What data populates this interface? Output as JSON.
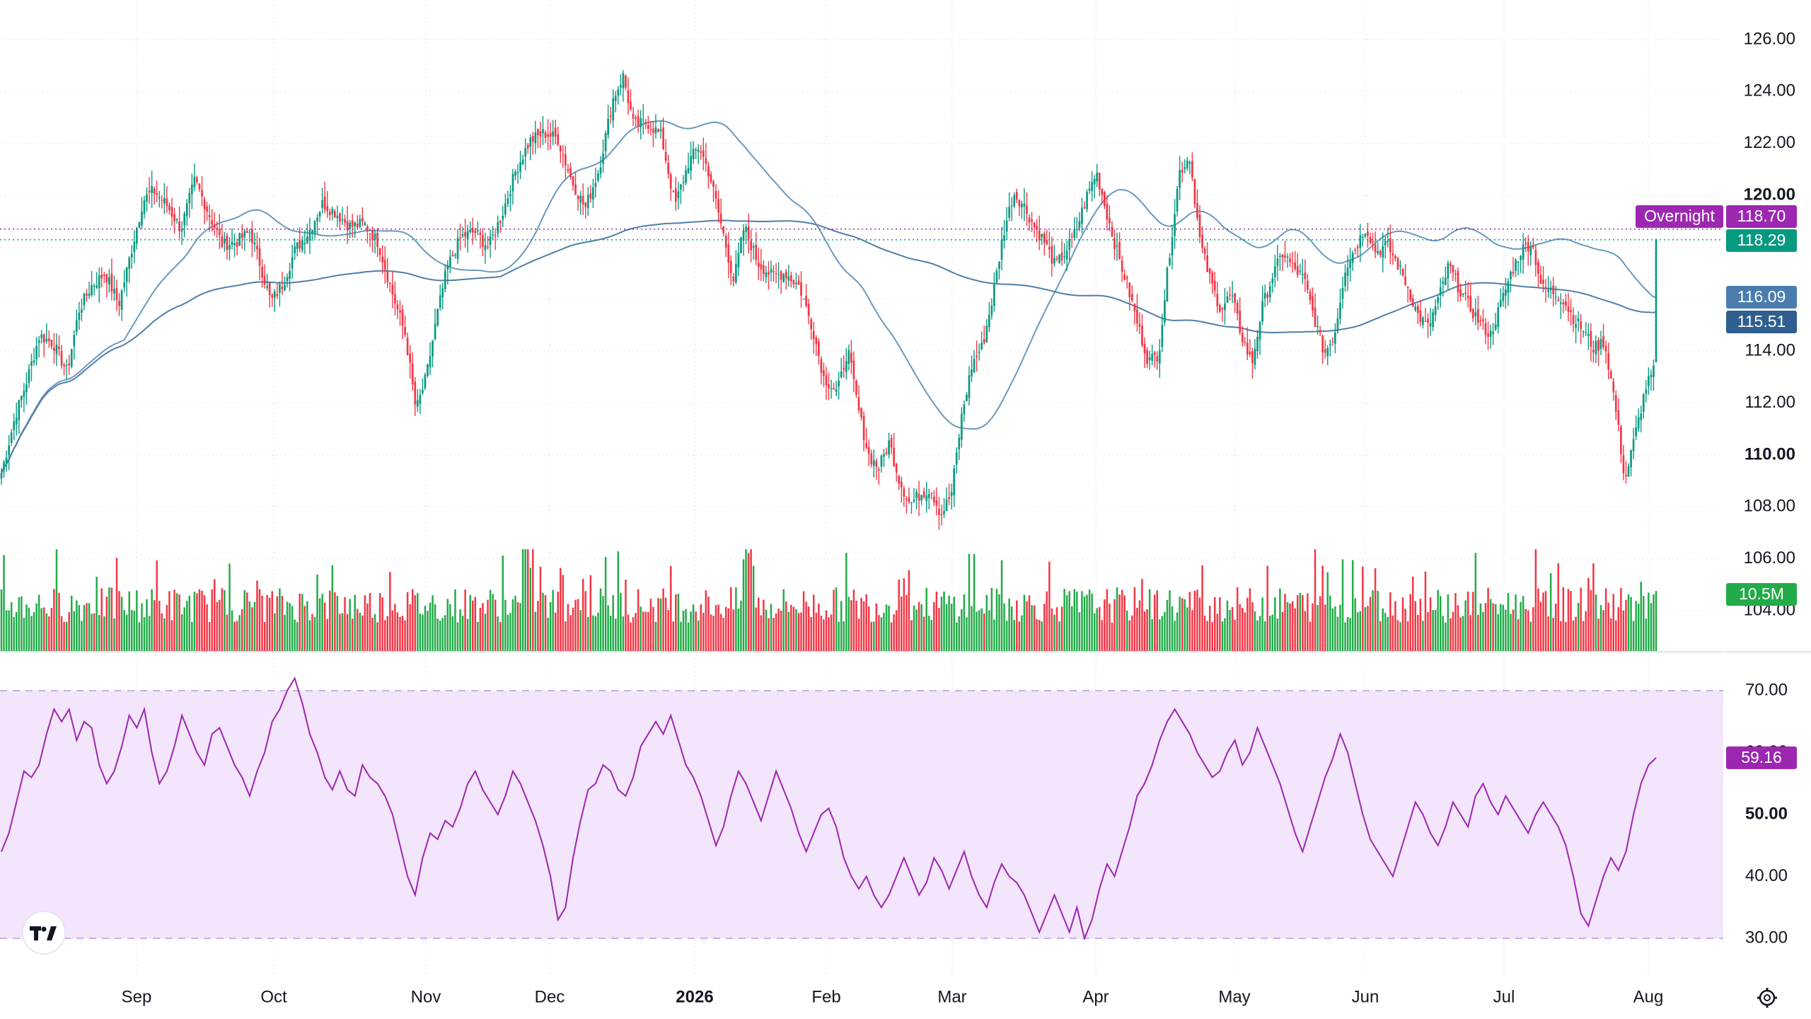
{
  "chart_data": [
    {
      "type": "candlestick",
      "x_axis": {
        "tick_labels": [
          "Sep",
          "Oct",
          "Nov",
          "Dec",
          "2026",
          "Feb",
          "Mar",
          "Apr",
          "May",
          "Jun",
          "Jul",
          "Aug"
        ]
      },
      "y_axis": {
        "tick_labels": [
          "104.00",
          "106.00",
          "108.00",
          "110.00",
          "112.00",
          "114.00",
          "116.00",
          "118.00",
          "120.00",
          "122.00",
          "124.00",
          "126.00"
        ],
        "bold_ticks": [
          "110.00",
          "120.00"
        ],
        "range": [
          103,
          127
        ]
      },
      "price_lines": [
        {
          "label": "Overnight",
          "value": 118.7,
          "text": "118.70",
          "color": "#9c27b0"
        },
        {
          "label": "",
          "value": 118.29,
          "text": "118.29",
          "color": "#089981"
        }
      ],
      "moving_averages": [
        {
          "value": 116.09,
          "text": "116.09",
          "color": "#6a99bf"
        },
        {
          "value": 115.51,
          "text": "115.51",
          "color": "#4f7ea8"
        }
      ],
      "volume": {
        "last_text": "10.5M",
        "up_color": "#22ab48",
        "down_color": "#f23645"
      },
      "colors": {
        "up": "#089981",
        "down": "#f23645",
        "ma": "#6a99bf"
      }
    },
    {
      "type": "line",
      "indicator": "RSI",
      "y_axis": {
        "tick_labels": [
          "30.00",
          "40.00",
          "50.00",
          "60.00",
          "70.00"
        ],
        "bold_ticks": [
          "50.00"
        ],
        "range": [
          27,
          73
        ]
      },
      "band": [
        30,
        70
      ],
      "last": {
        "value": 59.16,
        "text": "59.16"
      },
      "colors": {
        "line": "#9c27b0",
        "band": "#f3e5fc"
      },
      "anchors": [
        [
          0,
          44
        ],
        [
          3,
          47
        ],
        [
          6,
          52
        ],
        [
          9,
          57
        ],
        [
          12,
          56
        ],
        [
          15,
          58
        ],
        [
          18,
          63
        ],
        [
          21,
          67
        ],
        [
          24,
          65
        ],
        [
          27,
          67
        ],
        [
          30,
          62
        ],
        [
          33,
          65
        ],
        [
          36,
          64
        ],
        [
          39,
          58
        ],
        [
          42,
          55
        ],
        [
          45,
          57
        ],
        [
          48,
          61
        ],
        [
          51,
          66
        ],
        [
          54,
          64
        ],
        [
          57,
          67
        ],
        [
          60,
          60
        ],
        [
          63,
          55
        ],
        [
          66,
          57
        ],
        [
          69,
          61
        ],
        [
          72,
          66
        ],
        [
          75,
          63
        ],
        [
          78,
          60
        ],
        [
          81,
          58
        ],
        [
          84,
          63
        ],
        [
          87,
          64
        ],
        [
          90,
          61
        ],
        [
          93,
          58
        ],
        [
          96,
          56
        ],
        [
          99,
          53
        ],
        [
          102,
          57
        ],
        [
          105,
          60
        ],
        [
          108,
          65
        ],
        [
          111,
          67
        ],
        [
          114,
          70
        ],
        [
          117,
          72
        ],
        [
          120,
          68
        ],
        [
          123,
          63
        ],
        [
          126,
          60
        ],
        [
          129,
          56
        ],
        [
          132,
          54
        ],
        [
          135,
          57
        ],
        [
          138,
          54
        ],
        [
          141,
          53
        ],
        [
          144,
          58
        ],
        [
          147,
          56
        ],
        [
          150,
          55
        ],
        [
          153,
          53
        ],
        [
          156,
          50
        ],
        [
          159,
          45
        ],
        [
          162,
          40
        ],
        [
          165,
          37
        ],
        [
          168,
          43
        ],
        [
          171,
          47
        ],
        [
          174,
          46
        ],
        [
          177,
          49
        ],
        [
          180,
          48
        ],
        [
          183,
          51
        ],
        [
          186,
          55
        ],
        [
          189,
          57
        ],
        [
          192,
          54
        ],
        [
          195,
          52
        ],
        [
          198,
          50
        ],
        [
          201,
          53
        ],
        [
          204,
          57
        ],
        [
          207,
          55
        ],
        [
          210,
          52
        ],
        [
          213,
          49
        ],
        [
          216,
          45
        ],
        [
          219,
          40
        ],
        [
          222,
          33
        ],
        [
          225,
          35
        ],
        [
          228,
          43
        ],
        [
          231,
          49
        ],
        [
          234,
          54
        ],
        [
          237,
          55
        ],
        [
          240,
          58
        ],
        [
          243,
          57
        ],
        [
          246,
          54
        ],
        [
          249,
          53
        ],
        [
          252,
          56
        ],
        [
          255,
          61
        ],
        [
          258,
          63
        ],
        [
          261,
          65
        ],
        [
          264,
          63
        ],
        [
          267,
          66
        ],
        [
          270,
          62
        ],
        [
          273,
          58
        ],
        [
          276,
          56
        ],
        [
          279,
          53
        ],
        [
          282,
          49
        ],
        [
          285,
          45
        ],
        [
          288,
          48
        ],
        [
          291,
          53
        ],
        [
          294,
          57
        ],
        [
          297,
          55
        ],
        [
          300,
          52
        ],
        [
          303,
          49
        ],
        [
          306,
          53
        ],
        [
          309,
          57
        ],
        [
          312,
          54
        ],
        [
          315,
          51
        ],
        [
          318,
          47
        ],
        [
          321,
          44
        ],
        [
          324,
          47
        ],
        [
          327,
          50
        ],
        [
          330,
          51
        ],
        [
          333,
          48
        ],
        [
          336,
          43
        ],
        [
          339,
          40
        ],
        [
          342,
          38
        ],
        [
          345,
          40
        ],
        [
          348,
          37
        ],
        [
          351,
          35
        ],
        [
          354,
          37
        ],
        [
          357,
          40
        ],
        [
          360,
          43
        ],
        [
          363,
          40
        ],
        [
          366,
          37
        ],
        [
          369,
          39
        ],
        [
          372,
          43
        ],
        [
          375,
          41
        ],
        [
          378,
          38
        ],
        [
          381,
          41
        ],
        [
          384,
          44
        ],
        [
          387,
          40
        ],
        [
          390,
          37
        ],
        [
          393,
          35
        ],
        [
          396,
          39
        ],
        [
          399,
          42
        ],
        [
          402,
          40
        ],
        [
          405,
          39
        ],
        [
          408,
          37
        ],
        [
          411,
          34
        ],
        [
          414,
          31
        ],
        [
          417,
          34
        ],
        [
          420,
          37
        ],
        [
          423,
          34
        ],
        [
          426,
          31
        ],
        [
          429,
          35
        ],
        [
          432,
          30
        ],
        [
          435,
          33
        ],
        [
          438,
          38
        ],
        [
          441,
          42
        ],
        [
          444,
          40
        ],
        [
          447,
          44
        ],
        [
          450,
          48
        ],
        [
          453,
          53
        ],
        [
          456,
          55
        ],
        [
          459,
          58
        ],
        [
          462,
          62
        ],
        [
          465,
          65
        ],
        [
          468,
          67
        ],
        [
          471,
          65
        ],
        [
          474,
          63
        ],
        [
          477,
          60
        ],
        [
          480,
          58
        ],
        [
          483,
          56
        ],
        [
          486,
          57
        ],
        [
          489,
          60
        ],
        [
          492,
          62
        ],
        [
          495,
          58
        ],
        [
          498,
          60
        ],
        [
          501,
          64
        ],
        [
          504,
          61
        ],
        [
          507,
          58
        ],
        [
          510,
          55
        ],
        [
          513,
          51
        ],
        [
          516,
          47
        ],
        [
          519,
          44
        ],
        [
          522,
          48
        ],
        [
          525,
          52
        ],
        [
          528,
          56
        ],
        [
          531,
          59
        ],
        [
          534,
          63
        ],
        [
          537,
          60
        ],
        [
          540,
          55
        ],
        [
          543,
          50
        ],
        [
          546,
          46
        ],
        [
          549,
          44
        ],
        [
          552,
          42
        ],
        [
          555,
          40
        ],
        [
          558,
          44
        ],
        [
          561,
          48
        ],
        [
          564,
          52
        ],
        [
          567,
          50
        ],
        [
          570,
          47
        ],
        [
          573,
          45
        ],
        [
          576,
          48
        ],
        [
          579,
          52
        ],
        [
          582,
          50
        ],
        [
          585,
          48
        ],
        [
          588,
          53
        ],
        [
          591,
          55
        ],
        [
          594,
          52
        ],
        [
          597,
          50
        ],
        [
          600,
          53
        ],
        [
          603,
          51
        ],
        [
          606,
          49
        ],
        [
          609,
          47
        ],
        [
          612,
          50
        ],
        [
          615,
          52
        ],
        [
          618,
          50
        ],
        [
          621,
          48
        ],
        [
          624,
          45
        ],
        [
          627,
          40
        ],
        [
          630,
          34
        ],
        [
          633,
          32
        ],
        [
          636,
          36
        ],
        [
          639,
          40
        ],
        [
          642,
          43
        ],
        [
          645,
          41
        ],
        [
          648,
          44
        ],
        [
          651,
          50
        ],
        [
          654,
          55
        ],
        [
          657,
          58
        ],
        [
          660,
          59.16
        ]
      ]
    }
  ]
}
